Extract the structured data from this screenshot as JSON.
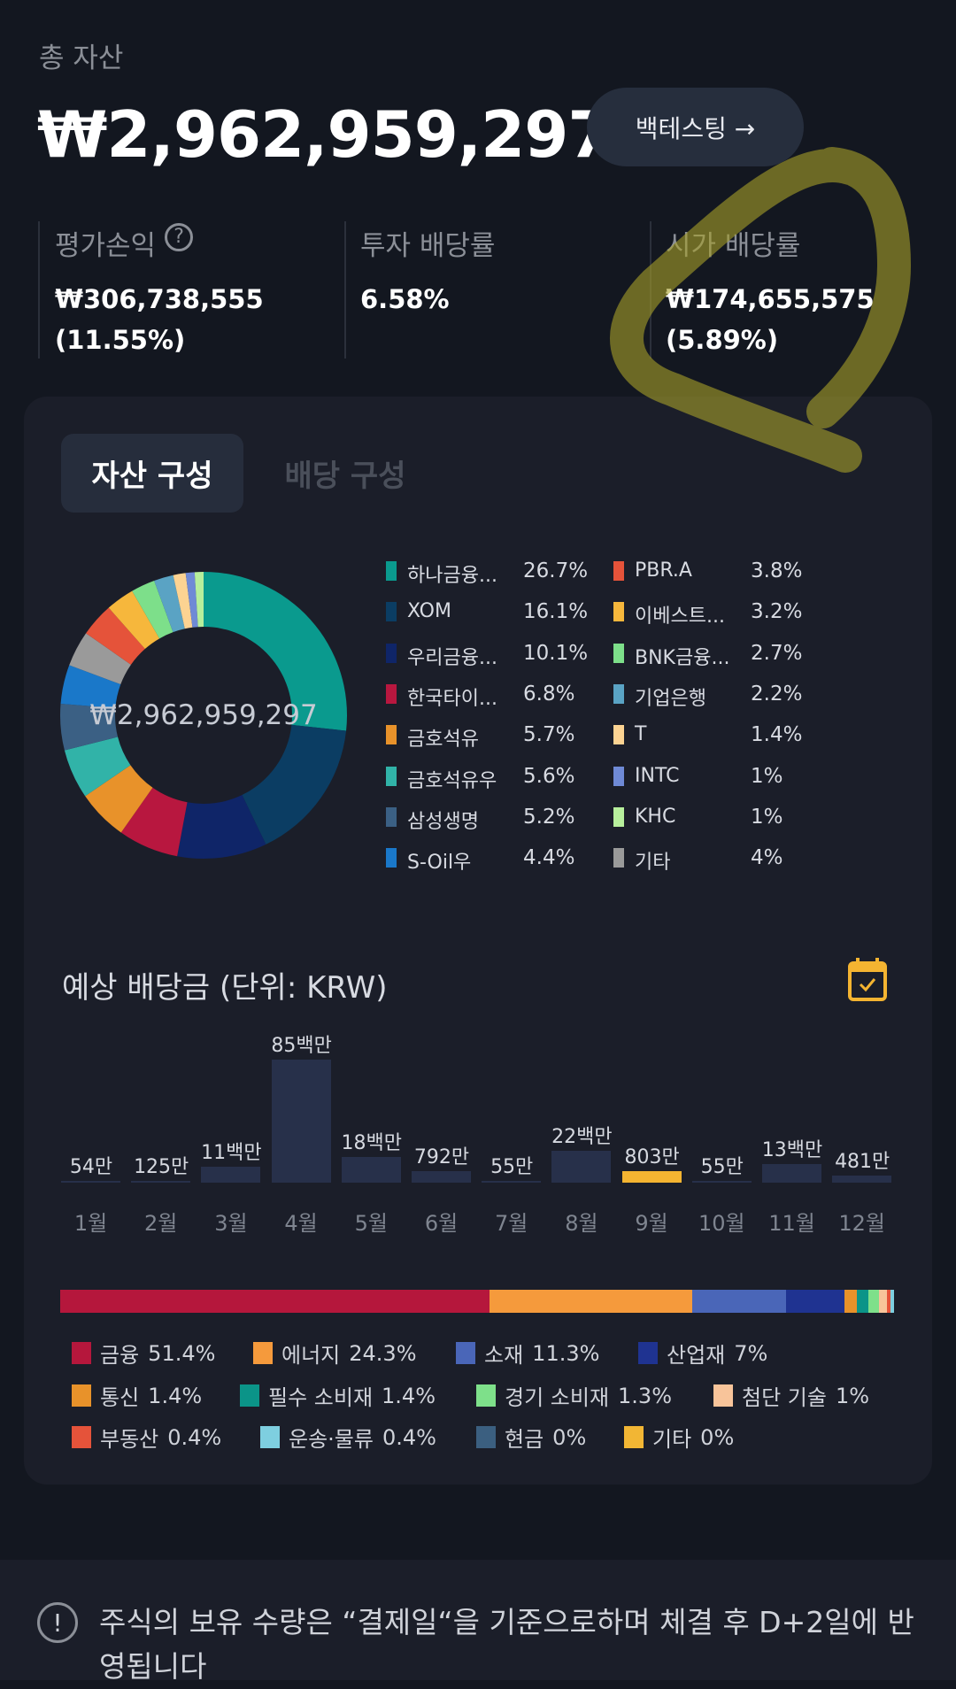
{
  "header": {
    "total_label": "총 자산",
    "total_value": "₩2,962,959,297",
    "backtest_label": "백테스팅 →"
  },
  "stats": [
    {
      "label": "평가손익",
      "value": "₩306,738,555",
      "sub": "(11.55%)",
      "icon": "question-circle-icon"
    },
    {
      "label": "투자 배당률",
      "value": "6.58%"
    },
    {
      "label": "시가 배당률",
      "value": "₩174,655,575",
      "sub": "(5.89%)"
    }
  ],
  "tabs": [
    {
      "label": "자산 구성",
      "active": true
    },
    {
      "label": "배당 구성",
      "active": false
    }
  ],
  "chart_data": [
    {
      "type": "pie",
      "center_label": "₩2,962,959,297",
      "slices": [
        {
          "name": "하나금융...",
          "pct": "26.7%",
          "value": 26.7,
          "color": "#0a9a8e"
        },
        {
          "name": "XOM",
          "pct": "16.1%",
          "value": 16.1,
          "color": "#0b3d63"
        },
        {
          "name": "우리금융...",
          "pct": "10.1%",
          "value": 10.1,
          "color": "#0f2568"
        },
        {
          "name": "한국타이...",
          "pct": "6.8%",
          "value": 6.8,
          "color": "#b8173f"
        },
        {
          "name": "금호석유",
          "pct": "5.7%",
          "value": 5.7,
          "color": "#e8922a"
        },
        {
          "name": "금호석유우",
          "pct": "5.6%",
          "value": 5.6,
          "color": "#31b3a8"
        },
        {
          "name": "삼성생명",
          "pct": "5.2%",
          "value": 5.2,
          "color": "#3b6084"
        },
        {
          "name": "S-Oil우",
          "pct": "4.4%",
          "value": 4.4,
          "color": "#1a78c9"
        },
        {
          "name": "기타",
          "pct": "4%",
          "value": 4,
          "color": "#9a9a9a"
        },
        {
          "name": "PBR.A",
          "pct": "3.8%",
          "value": 3.8,
          "color": "#e5533a"
        },
        {
          "name": "이베스트...",
          "pct": "3.2%",
          "value": 3.2,
          "color": "#f6b73c"
        },
        {
          "name": "BNK금융...",
          "pct": "2.7%",
          "value": 2.7,
          "color": "#7ddf8a"
        },
        {
          "name": "기업은행",
          "pct": "2.2%",
          "value": 2.2,
          "color": "#5aa3c4"
        },
        {
          "name": "T",
          "pct": "1.4%",
          "value": 1.4,
          "color": "#fcd392"
        },
        {
          "name": "INTC",
          "pct": "1%",
          "value": 1,
          "color": "#6f8ad6"
        },
        {
          "name": "KHC",
          "pct": "1%",
          "value": 1,
          "color": "#b7ef9c"
        }
      ]
    },
    {
      "type": "bar",
      "title": "예상 배당금 (단위: KRW)",
      "categories": [
        "1월",
        "2월",
        "3월",
        "4월",
        "5월",
        "6월",
        "7월",
        "8월",
        "9월",
        "10월",
        "11월",
        "12월"
      ],
      "labels": [
        "54만",
        "125만",
        "11백만",
        "85백만",
        "18백만",
        "792만",
        "55만",
        "22백만",
        "803만",
        "55만",
        "13백만",
        "481만"
      ],
      "values": [
        540000,
        1250000,
        11000000,
        85000000,
        18000000,
        7920000,
        550000,
        22000000,
        8030000,
        550000,
        13000000,
        4810000
      ],
      "highlight_index": 8,
      "bar_color": "#27304a",
      "highlight_color": "#f4b431"
    },
    {
      "type": "bar",
      "orientation": "stacked-horizontal",
      "segments": [
        {
          "name": "금융",
          "pct": "51.4%",
          "value": 51.4,
          "color": "#b5173c"
        },
        {
          "name": "에너지",
          "pct": "24.3%",
          "value": 24.3,
          "color": "#f59a3c"
        },
        {
          "name": "소재",
          "pct": "11.3%",
          "value": 11.3,
          "color": "#4a66b8"
        },
        {
          "name": "산업재",
          "pct": "7%",
          "value": 7,
          "color": "#1f3391"
        },
        {
          "name": "통신",
          "pct": "1.4%",
          "value": 1.4,
          "color": "#e8922a"
        },
        {
          "name": "필수 소비재",
          "pct": "1.4%",
          "value": 1.4,
          "color": "#0b9488"
        },
        {
          "name": "경기 소비재",
          "pct": "1.3%",
          "value": 1.3,
          "color": "#7ee08a"
        },
        {
          "name": "첨단 기술",
          "pct": "1%",
          "value": 1,
          "color": "#f8c49a"
        },
        {
          "name": "부동산",
          "pct": "0.4%",
          "value": 0.4,
          "color": "#e5533a"
        },
        {
          "name": "운송·물류",
          "pct": "0.4%",
          "value": 0.4,
          "color": "#7ecfe0"
        },
        {
          "name": "현금",
          "pct": "0%",
          "value": 0,
          "color": "#3b5f80"
        },
        {
          "name": "기타",
          "pct": "0%",
          "value": 0,
          "color": "#f2b634"
        }
      ]
    }
  ],
  "dividend": {
    "calendar_icon": "calendar-check-icon"
  },
  "notice": {
    "icon": "exclamation-circle-icon",
    "text": "주식의 보유 수량은 “결제일“을 기준으로하며 체결 후 D+2일에 반영됩니다"
  },
  "annotation_color": "#a9a02a"
}
